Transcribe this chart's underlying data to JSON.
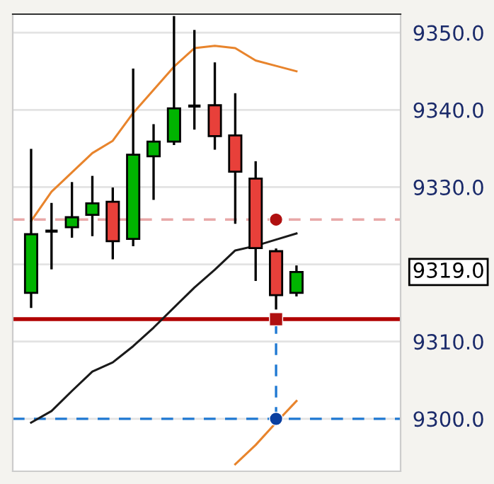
{
  "chart_data": {
    "type": "candlestick",
    "categories": [
      null,
      null,
      null,
      null,
      null,
      null,
      null,
      null,
      null,
      null,
      null,
      null,
      null,
      null
    ],
    "ohlc": [
      [
        9316.3,
        9334.8,
        9314.5,
        9323.9
      ],
      [
        9324.3,
        9327.8,
        9319.5,
        9324.3
      ],
      [
        9324.8,
        9330.5,
        9323.6,
        9326.1
      ],
      [
        9326.4,
        9331.3,
        9323.8,
        9327.9
      ],
      [
        9328.1,
        9329.8,
        9320.8,
        9323.0
      ],
      [
        9323.3,
        9345.2,
        9322.5,
        9334.2
      ],
      [
        9334.0,
        9338.0,
        9328.5,
        9335.9
      ],
      [
        9335.9,
        9352.0,
        9335.6,
        9340.2
      ],
      [
        9340.5,
        9350.2,
        9337.6,
        9340.5
      ],
      [
        9340.6,
        9346.0,
        9335.0,
        9336.6
      ],
      [
        9336.7,
        9342.0,
        9325.4,
        9332.0
      ],
      [
        9331.1,
        9333.2,
        9318.0,
        9322.1
      ],
      [
        9321.7,
        9321.9,
        9314.3,
        9316.0
      ],
      [
        9316.3,
        9319.7,
        9316.0,
        9319.0
      ]
    ],
    "colors": [
      "#00b400",
      "#000000",
      "#00b400",
      "#00b400",
      "#e8403a",
      "#00b400",
      "#00b400",
      "#00b400",
      "#000000",
      "#e8403a",
      "#e8403a",
      "#e8403a",
      "#e8403a",
      "#00b400"
    ],
    "series": [
      {
        "type": "line",
        "color": "#e8842c",
        "values": [
          9325.6,
          9329.4,
          9331.9,
          9334.4,
          9336.0,
          9339.6,
          9342.6,
          9345.6,
          9348.0,
          9348.3,
          9348.0,
          9346.4,
          9345.7,
          9345.0
        ]
      },
      {
        "type": "line",
        "color": "#e8842c",
        "values": [
          null,
          null,
          null,
          null,
          null,
          null,
          null,
          null,
          null,
          null,
          9294.1,
          9296.6,
          9299.5,
          9302.3
        ]
      },
      {
        "type": "line",
        "color": "#1a1a1a",
        "values": [
          9299.5,
          9301.0,
          9303.6,
          9306.1,
          9307.3,
          9309.4,
          9311.8,
          9314.4,
          9317.0,
          9319.3,
          9321.8,
          9322.4,
          9323.2,
          9324.0
        ]
      },
      {
        "type": "scatter",
        "color": "#b01010",
        "marker": "circle",
        "values": [
          null,
          null,
          null,
          null,
          null,
          null,
          null,
          null,
          null,
          null,
          null,
          null,
          9325.8,
          null
        ]
      },
      {
        "type": "scatter",
        "color": "#b01010",
        "marker": "square",
        "values": [
          null,
          null,
          null,
          null,
          null,
          null,
          null,
          null,
          null,
          null,
          null,
          null,
          9312.9,
          null
        ]
      },
      {
        "type": "scatter",
        "color": "#0a3fa0",
        "marker": "circle",
        "values": [
          null,
          null,
          null,
          null,
          null,
          null,
          null,
          null,
          null,
          null,
          null,
          null,
          9300.0,
          null
        ]
      }
    ],
    "ref_lines": [
      {
        "axis": "y",
        "value": 9312.9,
        "color": "#b00000",
        "line_style": "solid"
      },
      {
        "axis": "y",
        "value": 9325.8,
        "color": "#e8a8a8",
        "line_style": "dashed"
      },
      {
        "axis": "y",
        "value": 9300.0,
        "color": "#1e78d2",
        "line_style": "dashed"
      }
    ],
    "annotations": [
      "9319.0"
    ],
    "ylim": [
      9293.2,
      9352.4
    ],
    "yticks": [
      {
        "value": 9300,
        "label": "9300.0"
      },
      {
        "value": 9310,
        "label": "9310.0"
      },
      {
        "value": 9320,
        "label": null
      },
      {
        "value": 9330,
        "label": "9330.0"
      },
      {
        "value": 9340,
        "label": "9340.0"
      },
      {
        "value": 9350,
        "label": "9350.0"
      }
    ],
    "tick_labels": "y",
    "grid": true
  }
}
